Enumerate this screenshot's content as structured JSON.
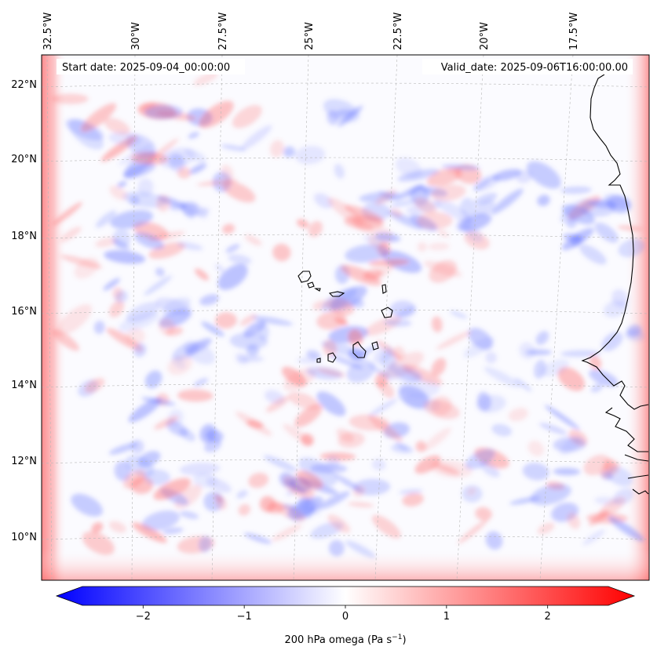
{
  "map": {
    "start_date_label": "Start date: 2025-09-04_00:00:00",
    "valid_date_label": "Valid_date: 2025-09-06T16:00:00.00",
    "lon_labels": [
      "32.5°W",
      "30°W",
      "27.5°W",
      "25°W",
      "22.5°W",
      "20°W",
      "17.5°W"
    ],
    "lat_labels": [
      "22°N",
      "20°N",
      "18°N",
      "16°N",
      "14°N",
      "12°N",
      "10°N"
    ],
    "projection": "Lambert conformal style with converging meridians",
    "field": "200 hPa vertical velocity (omega)",
    "colors": {
      "negative": "#0000ff",
      "neutral": "#ffffff",
      "positive": "#ff0000",
      "coast": "#000000",
      "grid": "#b0b0b0"
    }
  },
  "colorbar": {
    "label": "200 hPa omega (Pa s",
    "label_superscript": "−1",
    "label_close": ")",
    "ticks": [
      "−2",
      "−1",
      "0",
      "1",
      "2"
    ],
    "tick_values": [
      -2,
      -1,
      0,
      1,
      2
    ],
    "range": [
      -2.6,
      2.6
    ],
    "colormap": "bwr",
    "extend": "both"
  }
}
